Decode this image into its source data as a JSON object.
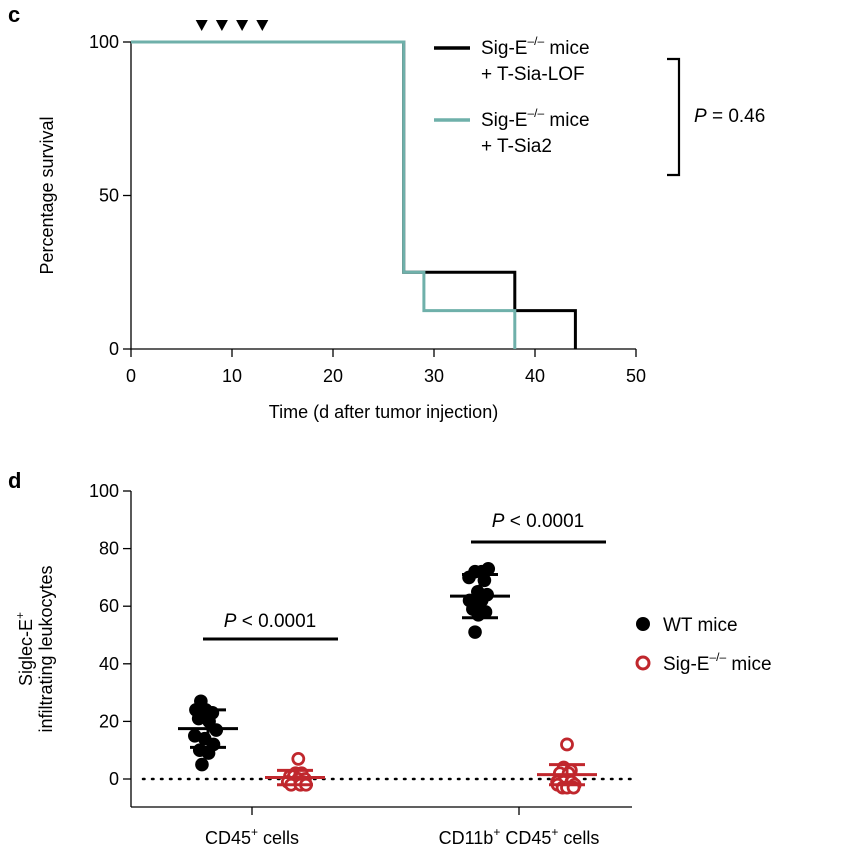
{
  "chart_data": [
    {
      "panel": "c",
      "type": "line",
      "subtype": "kaplan-meier",
      "xlabel": "Time (d after tumor injection)",
      "ylabel": "Percentage survival",
      "xlim": [
        0,
        50
      ],
      "ylim": [
        0,
        100
      ],
      "xticks": [
        0,
        10,
        20,
        30,
        40,
        50
      ],
      "yticks": [
        0,
        50,
        100
      ],
      "treatment_days": [
        7,
        9,
        11,
        13
      ],
      "series": [
        {
          "name_main": "Sig-E",
          "name_sup": "–/–",
          "name_suffix": " mice",
          "name_line2": "+ T-Sia-LOF",
          "color": "#000000",
          "steps": [
            [
              0,
              100
            ],
            [
              27,
              100
            ],
            [
              27,
              25
            ],
            [
              38,
              25
            ],
            [
              38,
              12.5
            ],
            [
              44,
              12.5
            ],
            [
              44,
              0
            ]
          ]
        },
        {
          "name_main": "Sig-E",
          "name_sup": "–/–",
          "name_suffix": " mice",
          "name_line2": "+ T-Sia2",
          "color": "#6fb0aa",
          "steps": [
            [
              0,
              100
            ],
            [
              27,
              100
            ],
            [
              27,
              25
            ],
            [
              29,
              25
            ],
            [
              29,
              12.5
            ],
            [
              38,
              12.5
            ],
            [
              38,
              0
            ]
          ]
        }
      ],
      "stat": {
        "p_italic": "P",
        "p_rest": " = 0.46"
      }
    },
    {
      "panel": "d",
      "type": "scatter",
      "subtype": "dot-plot",
      "ylabel_line1_main": "Siglec-E",
      "ylabel_line1_sup": "+",
      "ylabel_line2": "infiltrating leukocytes",
      "ylim": [
        -10,
        100
      ],
      "yticks": [
        0,
        20,
        40,
        60,
        80,
        100
      ],
      "reference_line_y": 0,
      "categories": [
        {
          "parts": [
            {
              "t": "CD45",
              "sup": false
            },
            {
              "t": "+",
              "sup": true
            },
            {
              "t": " cells",
              "sup": false
            }
          ]
        },
        {
          "parts": [
            {
              "t": "CD11b",
              "sup": false
            },
            {
              "t": "+",
              "sup": true
            },
            {
              "t": " CD45",
              "sup": false
            },
            {
              "t": "+",
              "sup": true
            },
            {
              "t": " cells",
              "sup": false
            }
          ]
        }
      ],
      "series": [
        {
          "name_main": "WT mice",
          "name_sup": "",
          "name_suffix": "",
          "color": "#000000",
          "filled": true,
          "groups": [
            {
              "mean": 17.5,
              "sd": 6.5,
              "points": [
                [
                  -0.13,
                  27
                ],
                [
                  -0.22,
                  24
                ],
                [
                  -0.04,
                  24
                ],
                [
                  0.08,
                  23
                ],
                [
                  -0.17,
                  21
                ],
                [
                  0.02,
                  20
                ],
                [
                  0.15,
                  17
                ],
                [
                  -0.24,
                  15
                ],
                [
                  -0.06,
                  14
                ],
                [
                  0.1,
                  12
                ],
                [
                  -0.15,
                  10
                ],
                [
                  0.01,
                  9
                ],
                [
                  -0.11,
                  5
                ]
              ]
            },
            {
              "mean": 63.5,
              "sd": 7.5,
              "points": [
                [
                  -0.09,
                  72
                ],
                [
                  0.03,
                  72
                ],
                [
                  0.15,
                  73
                ],
                [
                  -0.2,
                  70
                ],
                [
                  0.08,
                  69
                ],
                [
                  -0.04,
                  65
                ],
                [
                  0.13,
                  64
                ],
                [
                  -0.19,
                  62
                ],
                [
                  0.03,
                  62
                ],
                [
                  -0.13,
                  59
                ],
                [
                  0.1,
                  58
                ],
                [
                  -0.03,
                  57
                ],
                [
                  -0.09,
                  51
                ]
              ]
            }
          ]
        },
        {
          "name_main": "Sig-E",
          "name_sup": "–/–",
          "name_suffix": " mice",
          "color": "#c0272d",
          "filled": false,
          "groups": [
            {
              "mean": 0.5,
              "sd": 2.5,
              "points": [
                [
                  0.06,
                  7
                ],
                [
                  0.01,
                  2
                ],
                [
                  0.12,
                  2
                ],
                [
                  -0.09,
                  1
                ],
                [
                  -0.02,
                  1
                ],
                [
                  0.06,
                  0
                ],
                [
                  0.18,
                  0
                ],
                [
                  -0.13,
                  -1
                ],
                [
                  0.02,
                  -1
                ],
                [
                  0.14,
                  -1
                ],
                [
                  -0.07,
                  -2
                ],
                [
                  0.1,
                  -2
                ],
                [
                  0.2,
                  -2
                ]
              ]
            },
            {
              "mean": 1.5,
              "sd": 3.5,
              "points": [
                [
                  0.0,
                  12
                ],
                [
                  -0.06,
                  4
                ],
                [
                  0.07,
                  3
                ],
                [
                  -0.13,
                  2
                ],
                [
                  0.03,
                  2
                ],
                [
                  -0.18,
                  -1
                ],
                [
                  -0.06,
                  -1
                ],
                [
                  0.08,
                  -1
                ],
                [
                  -0.17,
                  -2
                ],
                [
                  0.14,
                  -2
                ],
                [
                  -0.08,
                  -3
                ],
                [
                  0.0,
                  -3
                ],
                [
                  0.12,
                  -3
                ]
              ]
            }
          ]
        }
      ],
      "comparisons": [
        {
          "p_italic": "P",
          "p_rest": " < 0.0001"
        },
        {
          "p_italic": "P",
          "p_rest": " < 0.0001"
        }
      ]
    }
  ],
  "panel_labels": {
    "c": "c",
    "d": "d"
  },
  "colors": {
    "black": "#000000",
    "teal": "#6fb0aa",
    "red": "#c0272d"
  }
}
